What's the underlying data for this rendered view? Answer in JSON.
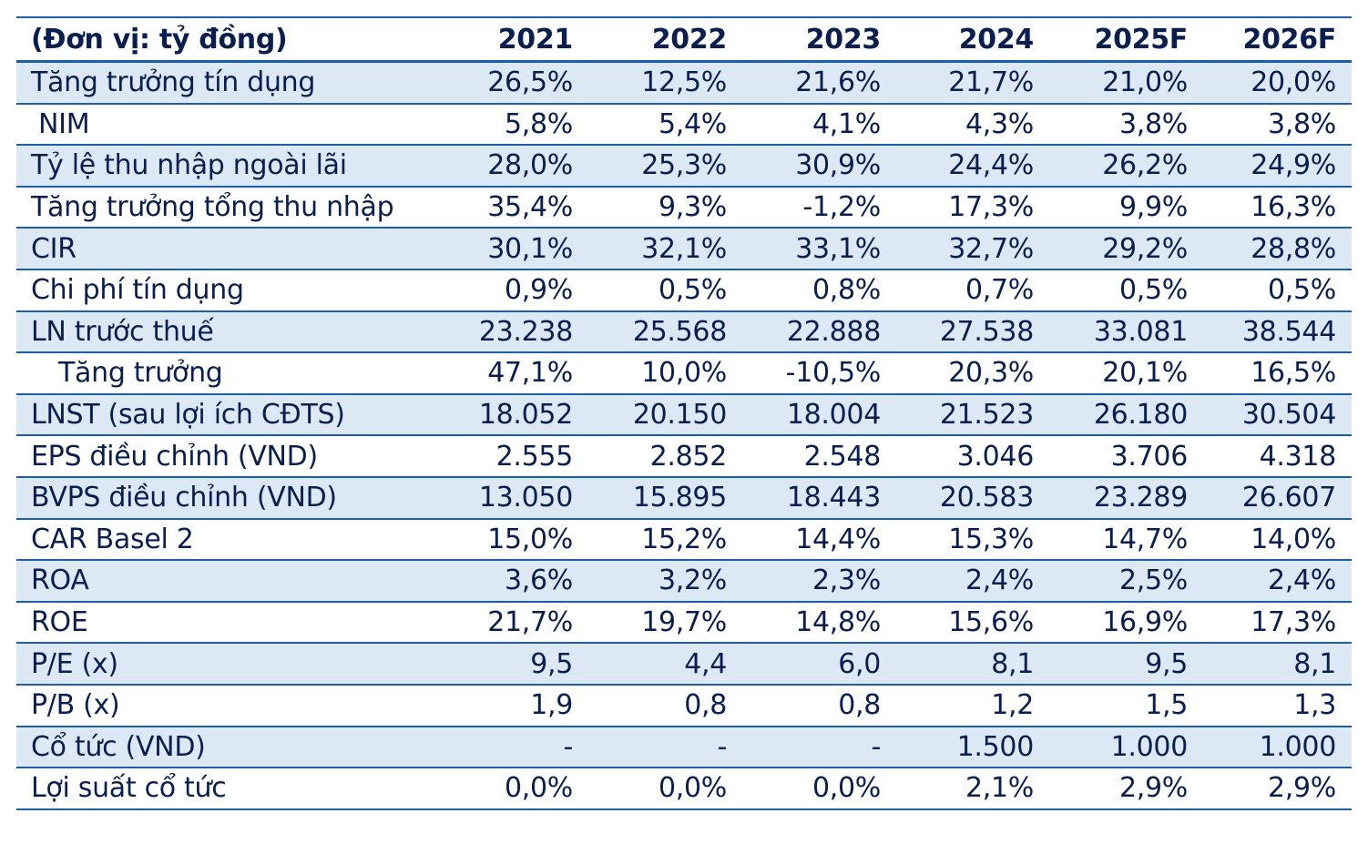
{
  "table": {
    "header": {
      "unit_label": "(Đơn vị: tỷ đồng)",
      "years": [
        "2021",
        "2022",
        "2023",
        "2024",
        "2025F",
        "2026F"
      ]
    },
    "rows": [
      {
        "label": "Tăng trưởng tín dụng",
        "values": [
          "26,5%",
          "12,5%",
          "21,6%",
          "21,7%",
          "21,0%",
          "20,0%"
        ]
      },
      {
        "label": "NIM",
        "values": [
          "5,8%",
          "5,4%",
          "4,1%",
          "4,3%",
          "3,8%",
          "3,8%"
        ]
      },
      {
        "label": "Tỷ lệ thu nhập ngoài lãi",
        "values": [
          "28,0%",
          "25,3%",
          "30,9%",
          "24,4%",
          "26,2%",
          "24,9%"
        ]
      },
      {
        "label": "Tăng trưởng tổng thu nhập",
        "values": [
          "35,4%",
          "9,3%",
          "-1,2%",
          "17,3%",
          "9,9%",
          "16,3%"
        ]
      },
      {
        "label": "CIR",
        "values": [
          "30,1%",
          "32,1%",
          "33,1%",
          "32,7%",
          "29,2%",
          "28,8%"
        ]
      },
      {
        "label": "Chi phí tín dụng",
        "values": [
          "0,9%",
          "0,5%",
          "0,8%",
          "0,7%",
          "0,5%",
          "0,5%"
        ]
      },
      {
        "label": "LN trước thuế",
        "values": [
          "23.238",
          "25.568",
          "22.888",
          "27.538",
          "33.081",
          "38.544"
        ]
      },
      {
        "label": "Tăng trưởng",
        "values": [
          "47,1%",
          "10,0%",
          "-10,5%",
          "20,3%",
          "20,1%",
          "16,5%"
        ]
      },
      {
        "label": "LNST (sau lợi ích CĐTS)",
        "values": [
          "18.052",
          "20.150",
          "18.004",
          "21.523",
          "26.180",
          "30.504"
        ]
      },
      {
        "label": "EPS điều chỉnh (VND)",
        "values": [
          "2.555",
          "2.852",
          "2.548",
          "3.046",
          "3.706",
          "4.318"
        ]
      },
      {
        "label": "BVPS điều chỉnh (VND)",
        "values": [
          "13.050",
          "15.895",
          "18.443",
          "20.583",
          "23.289",
          "26.607"
        ]
      },
      {
        "label": "CAR Basel 2",
        "values": [
          "15,0%",
          "15,2%",
          "14,4%",
          "15,3%",
          "14,7%",
          "14,0%"
        ]
      },
      {
        "label": "ROA",
        "values": [
          "3,6%",
          "3,2%",
          "2,3%",
          "2,4%",
          "2,5%",
          "2,4%"
        ]
      },
      {
        "label": "ROE",
        "values": [
          "21,7%",
          "19,7%",
          "14,8%",
          "15,6%",
          "16,9%",
          "17,3%"
        ]
      },
      {
        "label": "P/E (x)",
        "values": [
          "9,5",
          "4,4",
          "6,0",
          "8,1",
          "9,5",
          "8,1"
        ]
      },
      {
        "label": "P/B (x)",
        "values": [
          "1,9",
          "0,8",
          "0,8",
          "1,2",
          "1,5",
          "1,3"
        ]
      },
      {
        "label": "Cổ tức (VND)",
        "values": [
          "-",
          "-",
          "-",
          "1.500",
          "1.000",
          "1.000"
        ]
      },
      {
        "label": "Lợi suất cổ tức",
        "values": [
          "0,0%",
          "0,0%",
          "0,0%",
          "2,1%",
          "2,9%",
          "2,9%"
        ]
      }
    ]
  },
  "colors": {
    "text": "#0a1f4f",
    "row_shade": "#dde8f5",
    "rule": "#1d5ea8"
  }
}
